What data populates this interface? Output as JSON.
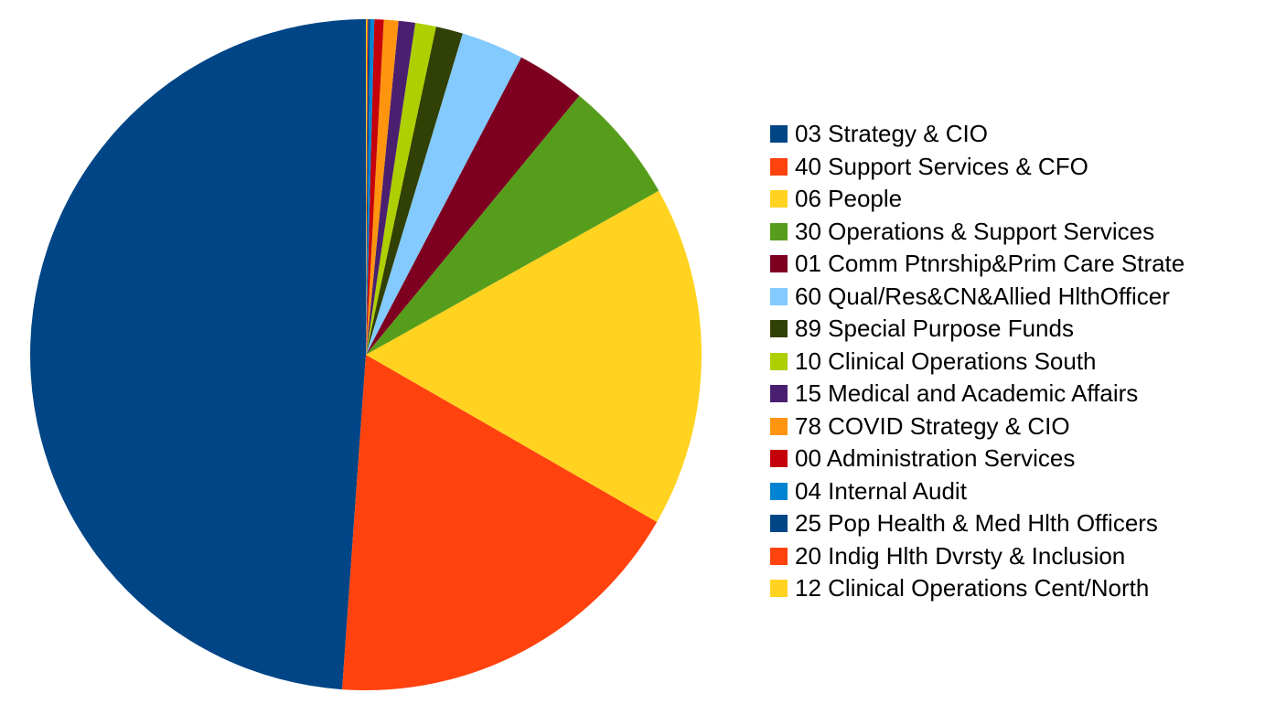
{
  "chart_data": {
    "type": "pie",
    "title": "",
    "start": "top",
    "direction": "counterclockwise",
    "legend_position": "right",
    "slices": [
      {
        "label": "03 Strategy & CIO",
        "value": 48.8,
        "color": "#004586"
      },
      {
        "label": "40 Support Services & CFO",
        "value": 17.8,
        "color": "#ff420e"
      },
      {
        "label": "06 People",
        "value": 16.4,
        "color": "#ffd320"
      },
      {
        "label": "30 Operations & Support Services",
        "value": 5.9,
        "color": "#579d1c"
      },
      {
        "label": "01 Comm Ptnrship&Prim Care Strate",
        "value": 3.3,
        "color": "#7e0021"
      },
      {
        "label": "60 Qual/Res&CN&Allied HlthOfficer",
        "value": 3.0,
        "color": "#83caff"
      },
      {
        "label": "89 Special Purpose Funds",
        "value": 1.3,
        "color": "#314004"
      },
      {
        "label": "10 Clinical Operations South",
        "value": 1.0,
        "color": "#aecf00"
      },
      {
        "label": "15 Medical and Academic Affairs",
        "value": 0.8,
        "color": "#4b1f6f"
      },
      {
        "label": "78 COVID Strategy & CIO",
        "value": 0.7,
        "color": "#ff950e"
      },
      {
        "label": "00 Administration Services",
        "value": 0.45,
        "color": "#c5000b"
      },
      {
        "label": "04 Internal Audit",
        "value": 0.2,
        "color": "#0084d1"
      },
      {
        "label": "25 Pop Health & Med Hlth Officers",
        "value": 0.1,
        "color": "#004586"
      },
      {
        "label": "20 Indig Hlth Dvrsty & Inclusion",
        "value": 0.05,
        "color": "#ff420e"
      },
      {
        "label": "12 Clinical Operations Cent/North",
        "value": 0.05,
        "color": "#ffd320"
      }
    ]
  }
}
